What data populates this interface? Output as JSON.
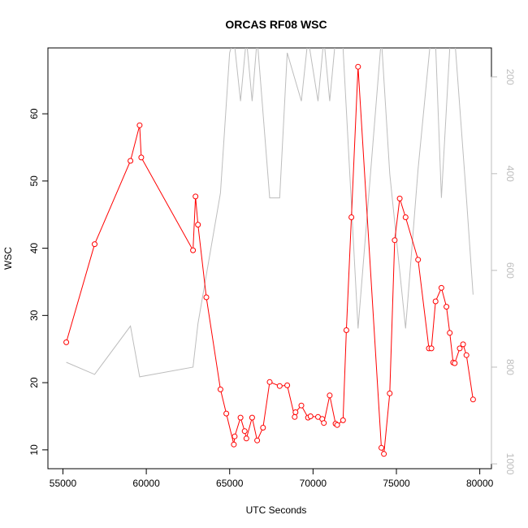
{
  "chart_data": {
    "type": "line",
    "title": "ORCAS RF08 WSC",
    "xlabel": "UTC Seconds",
    "ylabel": "WSC",
    "xlim": [
      54100,
      80700
    ],
    "ylim": [
      7.2,
      69.8
    ],
    "x_ticks": [
      55000,
      60000,
      65000,
      70000,
      75000,
      80000
    ],
    "y_ticks": [
      10,
      20,
      30,
      40,
      50,
      60
    ],
    "right_axis": {
      "label": "",
      "reversed": true,
      "lim": [
        1010,
        140
      ],
      "ticks": [
        200,
        400,
        600,
        800,
        1000
      ],
      "color": "#bdbdbd"
    },
    "grid": false,
    "legend": "none",
    "series": [
      {
        "color": "#ff0000",
        "axis": "left",
        "marker": "open-circle",
        "x": [
          55200,
          56900,
          59050,
          59600,
          59700,
          62800,
          62950,
          63100,
          63600,
          64450,
          64800,
          65250,
          65300,
          65650,
          65900,
          66000,
          66350,
          66650,
          67000,
          67400,
          68000,
          68450,
          68900,
          68950,
          69300,
          69700,
          69850,
          70300,
          70550,
          70650,
          71000,
          71350,
          71450,
          71800,
          72000,
          72300,
          72700,
          74100,
          74250,
          74600,
          74900,
          75200,
          75550,
          76300,
          76950,
          77100,
          77350,
          77700,
          78000,
          78200,
          78400,
          78500,
          78800,
          79000,
          79200,
          79600
        ],
        "values": [
          26.0,
          40.6,
          53.0,
          58.3,
          53.5,
          39.7,
          47.7,
          43.5,
          32.7,
          19.0,
          15.4,
          10.8,
          12.0,
          14.8,
          12.8,
          11.7,
          14.8,
          11.4,
          13.3,
          20.1,
          19.5,
          19.6,
          14.9,
          15.6,
          16.6,
          14.8,
          15.0,
          14.9,
          14.6,
          14.0,
          18.1,
          13.9,
          13.7,
          14.4,
          27.8,
          44.6,
          67.0,
          10.3,
          9.4,
          18.4,
          41.2,
          47.4,
          44.6,
          38.3,
          25.1,
          25.1,
          32.1,
          34.1,
          31.3,
          27.4,
          23.0,
          22.9,
          25.1,
          25.7,
          24.1,
          17.5
        ]
      },
      {
        "color": "#bdbdbd",
        "axis": "right",
        "marker": "none",
        "x": [
          55200,
          56900,
          59050,
          59600,
          62800,
          63100,
          64450,
          65000,
          65250,
          65650,
          66000,
          66350,
          66650,
          67400,
          68000,
          68450,
          69300,
          69700,
          70300,
          70650,
          71000,
          71350,
          71800,
          72700,
          74100,
          74600,
          75550,
          76300,
          77000,
          77350,
          77700,
          78200,
          78500,
          79200,
          79600
        ],
        "values": [
          790,
          815,
          715,
          820,
          800,
          710,
          440,
          150,
          120,
          250,
          120,
          250,
          120,
          450,
          450,
          150,
          250,
          120,
          250,
          120,
          250,
          120,
          140,
          720,
          120,
          400,
          720,
          390,
          140,
          130,
          450,
          140,
          120,
          450,
          650
        ]
      }
    ]
  }
}
